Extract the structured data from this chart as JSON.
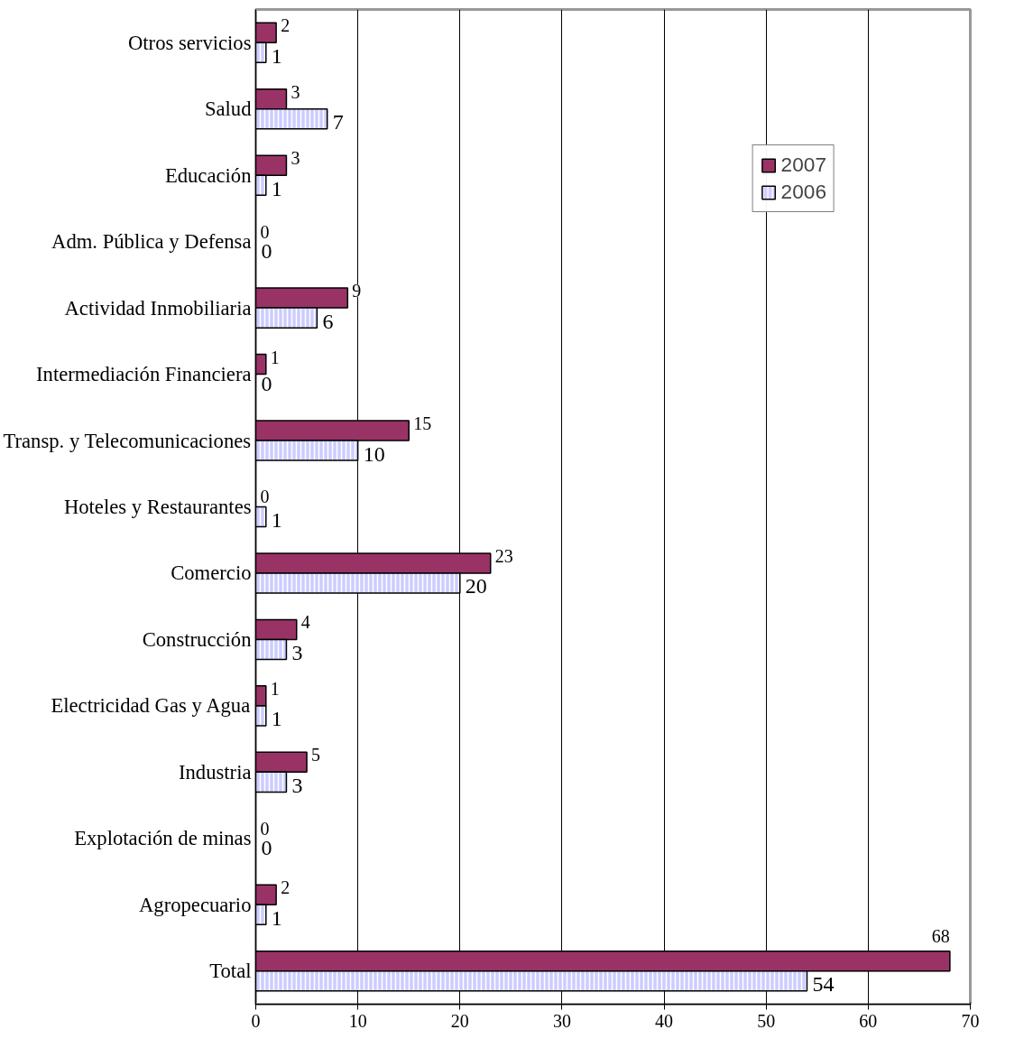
{
  "chart_data": {
    "type": "bar",
    "orientation": "horizontal",
    "categories": [
      "Otros servicios",
      "Salud",
      "Educación",
      "Adm. Pública y Defensa",
      "Actividad Inmobiliaria",
      "Intermediación Financiera",
      "Transp. y Telecomunicaciones",
      "Hoteles y Restaurantes",
      "Comercio",
      "Construcción",
      "Electricidad Gas y Agua",
      "Industria",
      "Explotación de minas",
      "Agropecuario",
      "Total"
    ],
    "series": [
      {
        "name": "2007",
        "color": "#993366",
        "values": [
          2,
          3,
          3,
          0,
          9,
          1,
          15,
          0,
          23,
          4,
          1,
          5,
          0,
          2,
          68
        ]
      },
      {
        "name": "2006",
        "color": "#ccccff",
        "values": [
          1,
          7,
          1,
          0,
          6,
          0,
          10,
          1,
          20,
          3,
          1,
          3,
          0,
          1,
          54
        ]
      }
    ],
    "xlim": [
      0,
      70
    ],
    "xticks": [
      0,
      10,
      20,
      30,
      40,
      50,
      60,
      70
    ],
    "grid": "x",
    "legend": "top right",
    "data_labels": true
  }
}
